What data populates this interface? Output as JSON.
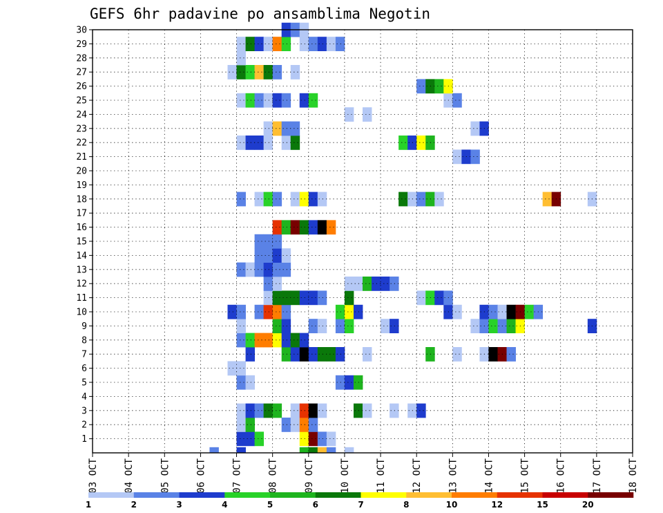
{
  "chart_data": {
    "type": "heatmap",
    "title": "GEFS 6hr padavine po ansamblima Negotin",
    "x_labels": [
      "03 OCT",
      "04 OCT",
      "05 OCT",
      "06 OCT",
      "07 OCT",
      "08 OCT",
      "09 OCT",
      "10 OCT",
      "11 OCT",
      "12 OCT",
      "13 OCT",
      "14 OCT",
      "15 OCT",
      "16 OCT",
      "17 OCT",
      "18 OCT"
    ],
    "x_range_days": [
      3,
      18
    ],
    "y_labels": [
      "1",
      "2",
      "3",
      "4",
      "5",
      "6",
      "7",
      "8",
      "9",
      "10",
      "11",
      "12",
      "13",
      "14",
      "15",
      "16",
      "17",
      "18",
      "19",
      "20",
      "21",
      "22",
      "23",
      "24",
      "25",
      "26",
      "27",
      "28",
      "29",
      "30"
    ],
    "y_range": [
      0,
      30
    ],
    "grid": true,
    "colorbar": {
      "labels": [
        "1",
        "2",
        "3",
        "4",
        "5",
        "6",
        "7",
        "8",
        "10",
        "12",
        "15",
        "20"
      ],
      "colors": [
        "#b4c8f5",
        "#5a82e6",
        "#1e3ccd",
        "#28d228",
        "#1eb41e",
        "#0a780a",
        "#ffff00",
        "#ffbe32",
        "#ff7d00",
        "#e63200",
        "#c80000",
        "#780000"
      ]
    },
    "cells": [
      [
        7.0,
        1,
        3
      ],
      [
        7.25,
        1,
        3
      ],
      [
        7.5,
        1,
        4
      ],
      [
        8.75,
        1,
        7
      ],
      [
        9.0,
        1,
        12
      ],
      [
        9.25,
        1,
        2
      ],
      [
        9.5,
        1,
        1
      ],
      [
        7.0,
        2,
        1
      ],
      [
        7.25,
        2,
        5
      ],
      [
        8.25,
        2,
        2
      ],
      [
        8.5,
        2,
        1
      ],
      [
        8.75,
        2,
        9
      ],
      [
        9.0,
        2,
        2
      ],
      [
        7.0,
        3,
        1
      ],
      [
        7.25,
        3,
        3
      ],
      [
        7.5,
        3,
        2
      ],
      [
        7.75,
        3,
        6
      ],
      [
        8.0,
        3,
        5
      ],
      [
        8.5,
        3,
        1
      ],
      [
        8.75,
        3,
        10
      ],
      [
        9.0,
        3,
        13
      ],
      [
        9.25,
        3,
        1
      ],
      [
        10.25,
        3,
        6
      ],
      [
        10.5,
        3,
        1
      ],
      [
        11.25,
        3,
        1
      ],
      [
        11.75,
        3,
        1
      ],
      [
        12.0,
        3,
        3
      ],
      [
        7.0,
        5,
        2
      ],
      [
        7.25,
        5,
        1
      ],
      [
        9.75,
        5,
        2
      ],
      [
        10.0,
        5,
        3
      ],
      [
        10.25,
        5,
        5
      ],
      [
        6.75,
        6,
        1
      ],
      [
        7.0,
        6,
        1
      ],
      [
        7.25,
        7,
        3
      ],
      [
        8.25,
        7,
        5
      ],
      [
        8.5,
        7,
        3
      ],
      [
        8.75,
        7,
        13
      ],
      [
        9.0,
        7,
        3
      ],
      [
        9.25,
        7,
        6
      ],
      [
        9.5,
        7,
        6
      ],
      [
        9.75,
        7,
        3
      ],
      [
        10.5,
        7,
        1
      ],
      [
        12.25,
        7,
        5
      ],
      [
        13.0,
        7,
        1
      ],
      [
        13.75,
        7,
        1
      ],
      [
        14.0,
        7,
        13
      ],
      [
        14.25,
        7,
        12
      ],
      [
        14.5,
        7,
        2
      ],
      [
        7.0,
        8,
        2
      ],
      [
        7.25,
        8,
        4
      ],
      [
        7.5,
        8,
        9
      ],
      [
        7.75,
        8,
        9
      ],
      [
        8.0,
        8,
        7
      ],
      [
        8.25,
        8,
        3
      ],
      [
        8.5,
        8,
        6
      ],
      [
        8.75,
        8,
        3
      ],
      [
        7.0,
        9,
        1
      ],
      [
        8.0,
        9,
        5
      ],
      [
        8.25,
        9,
        3
      ],
      [
        9.0,
        9,
        2
      ],
      [
        9.25,
        9,
        1
      ],
      [
        9.75,
        9,
        2
      ],
      [
        10.0,
        9,
        4
      ],
      [
        11.0,
        9,
        1
      ],
      [
        11.25,
        9,
        3
      ],
      [
        13.5,
        9,
        1
      ],
      [
        13.75,
        9,
        2
      ],
      [
        14.0,
        9,
        4
      ],
      [
        14.25,
        9,
        2
      ],
      [
        14.5,
        9,
        5
      ],
      [
        14.75,
        9,
        7
      ],
      [
        16.75,
        9,
        3
      ],
      [
        6.75,
        10,
        3
      ],
      [
        7.0,
        10,
        2
      ],
      [
        7.5,
        10,
        2
      ],
      [
        7.75,
        10,
        10
      ],
      [
        8.0,
        10,
        9
      ],
      [
        8.25,
        10,
        2
      ],
      [
        9.75,
        10,
        4
      ],
      [
        10.0,
        10,
        7
      ],
      [
        10.25,
        10,
        3
      ],
      [
        12.75,
        10,
        3
      ],
      [
        13.0,
        10,
        1
      ],
      [
        13.75,
        10,
        3
      ],
      [
        14.0,
        10,
        2
      ],
      [
        14.25,
        10,
        1
      ],
      [
        14.5,
        10,
        13
      ],
      [
        14.75,
        10,
        12
      ],
      [
        15.0,
        10,
        4
      ],
      [
        15.25,
        10,
        2
      ],
      [
        7.75,
        11,
        1
      ],
      [
        8.0,
        11,
        6
      ],
      [
        8.25,
        11,
        6
      ],
      [
        8.5,
        11,
        6
      ],
      [
        8.75,
        11,
        3
      ],
      [
        9.0,
        11,
        3
      ],
      [
        9.25,
        11,
        2
      ],
      [
        10.0,
        11,
        6
      ],
      [
        12.0,
        11,
        1
      ],
      [
        12.25,
        11,
        4
      ],
      [
        12.5,
        11,
        3
      ],
      [
        12.75,
        11,
        2
      ],
      [
        7.75,
        12,
        2
      ],
      [
        8.0,
        12,
        1
      ],
      [
        10.0,
        12,
        1
      ],
      [
        10.25,
        12,
        1
      ],
      [
        10.5,
        12,
        5
      ],
      [
        10.75,
        12,
        3
      ],
      [
        11.0,
        12,
        3
      ],
      [
        11.25,
        12,
        2
      ],
      [
        7.0,
        13,
        2
      ],
      [
        7.25,
        13,
        1
      ],
      [
        7.5,
        13,
        2
      ],
      [
        7.75,
        13,
        3
      ],
      [
        8.0,
        13,
        2
      ],
      [
        8.25,
        13,
        2
      ],
      [
        7.5,
        14,
        2
      ],
      [
        7.75,
        14,
        2
      ],
      [
        8.0,
        14,
        3
      ],
      [
        8.25,
        14,
        1
      ],
      [
        7.5,
        15,
        2
      ],
      [
        7.75,
        15,
        2
      ],
      [
        8.0,
        15,
        2
      ],
      [
        8.0,
        16,
        10
      ],
      [
        8.25,
        16,
        5
      ],
      [
        8.5,
        16,
        12
      ],
      [
        8.75,
        16,
        6
      ],
      [
        9.0,
        16,
        3
      ],
      [
        9.25,
        16,
        13
      ],
      [
        9.5,
        16,
        9
      ],
      [
        7.0,
        18,
        2
      ],
      [
        7.5,
        18,
        1
      ],
      [
        7.75,
        18,
        4
      ],
      [
        8.0,
        18,
        2
      ],
      [
        8.5,
        18,
        1
      ],
      [
        8.75,
        18,
        7
      ],
      [
        9.0,
        18,
        3
      ],
      [
        9.25,
        18,
        1
      ],
      [
        11.5,
        18,
        6
      ],
      [
        11.75,
        18,
        1
      ],
      [
        12.0,
        18,
        2
      ],
      [
        12.25,
        18,
        5
      ],
      [
        12.5,
        18,
        1
      ],
      [
        15.5,
        18,
        8
      ],
      [
        15.75,
        18,
        12
      ],
      [
        16.75,
        18,
        1
      ],
      [
        13.0,
        21,
        1
      ],
      [
        13.25,
        21,
        3
      ],
      [
        13.5,
        21,
        2
      ],
      [
        7.0,
        22,
        1
      ],
      [
        7.25,
        22,
        3
      ],
      [
        7.5,
        22,
        3
      ],
      [
        7.75,
        22,
        1
      ],
      [
        8.25,
        22,
        1
      ],
      [
        8.5,
        22,
        6
      ],
      [
        11.5,
        22,
        4
      ],
      [
        11.75,
        22,
        3
      ],
      [
        12.0,
        22,
        7
      ],
      [
        12.25,
        22,
        5
      ],
      [
        7.75,
        23,
        1
      ],
      [
        8.0,
        23,
        8
      ],
      [
        8.25,
        23,
        2
      ],
      [
        8.5,
        23,
        2
      ],
      [
        13.5,
        23,
        1
      ],
      [
        13.75,
        23,
        3
      ],
      [
        10.0,
        24,
        1
      ],
      [
        10.5,
        24,
        1
      ],
      [
        7.0,
        25,
        1
      ],
      [
        7.25,
        25,
        4
      ],
      [
        7.5,
        25,
        2
      ],
      [
        7.75,
        25,
        1
      ],
      [
        8.0,
        25,
        3
      ],
      [
        8.25,
        25,
        2
      ],
      [
        8.75,
        25,
        3
      ],
      [
        9.0,
        25,
        4
      ],
      [
        12.75,
        25,
        1
      ],
      [
        13.0,
        25,
        2
      ],
      [
        12.0,
        26,
        2
      ],
      [
        12.25,
        26,
        6
      ],
      [
        12.5,
        26,
        5
      ],
      [
        12.75,
        26,
        7
      ],
      [
        6.75,
        27,
        1
      ],
      [
        7.0,
        27,
        6
      ],
      [
        7.25,
        27,
        4
      ],
      [
        7.5,
        27,
        8
      ],
      [
        7.75,
        27,
        6
      ],
      [
        8.0,
        27,
        2
      ],
      [
        8.5,
        27,
        1
      ],
      [
        7.0,
        28,
        1
      ],
      [
        7.0,
        29,
        1
      ],
      [
        7.25,
        29,
        6
      ],
      [
        7.5,
        29,
        3
      ],
      [
        7.75,
        29,
        1
      ],
      [
        8.0,
        29,
        9
      ],
      [
        8.25,
        29,
        4
      ],
      [
        8.75,
        29,
        1
      ],
      [
        9.0,
        29,
        2
      ],
      [
        9.25,
        29,
        3
      ],
      [
        9.5,
        29,
        1
      ],
      [
        9.75,
        29,
        2
      ],
      [
        8.25,
        30,
        3
      ],
      [
        8.5,
        30,
        2
      ],
      [
        8.75,
        30,
        1
      ],
      [
        6.25,
        0,
        2
      ],
      [
        7.0,
        0,
        3
      ],
      [
        8.75,
        0,
        5
      ],
      [
        9.0,
        0,
        6
      ],
      [
        9.25,
        0,
        8
      ],
      [
        9.5,
        0,
        2
      ],
      [
        10.0,
        0,
        1
      ]
    ]
  }
}
